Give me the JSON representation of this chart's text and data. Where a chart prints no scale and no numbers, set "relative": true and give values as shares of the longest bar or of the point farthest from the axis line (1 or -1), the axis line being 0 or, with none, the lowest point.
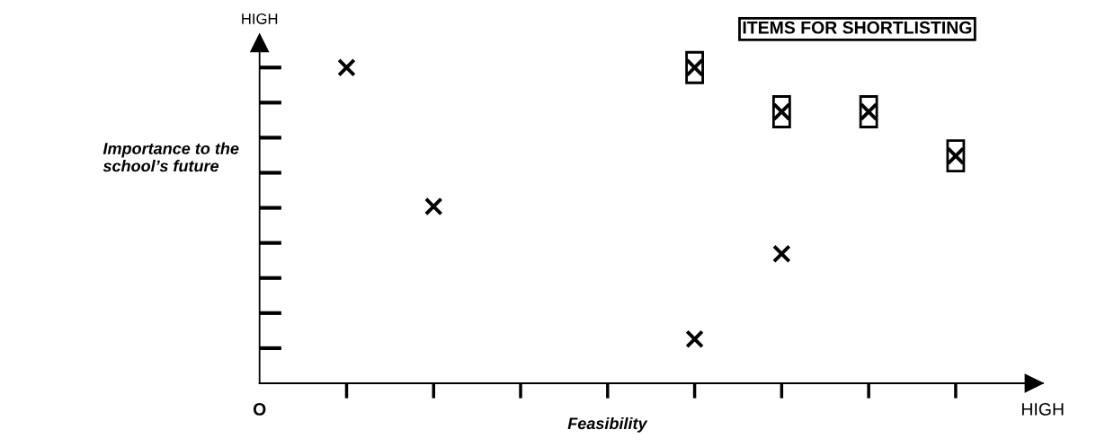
{
  "chart_data": {
    "type": "scatter",
    "xlabel": "Feasibility",
    "ylabel": "Importance to the\nschool’s future",
    "annotations": [
      "HIGH",
      "ITEMS FOR SHORTLISTING"
    ],
    "categories": [
      "O",
      null,
      null,
      null,
      null,
      null,
      null,
      null,
      null,
      "HIGH"
    ],
    "relative": true,
    "grid": false,
    "series": [
      {
        "color": "#000000",
        "values": [
          null,
          1,
          0.56,
          null,
          null,
          0.14,
          0.41,
          null,
          null,
          null
        ]
      },
      {
        "color": "#000000",
        "values": [
          null,
          null,
          null,
          null,
          null,
          1,
          0.86,
          0.86,
          0.72,
          null
        ]
      }
    ]
  }
}
